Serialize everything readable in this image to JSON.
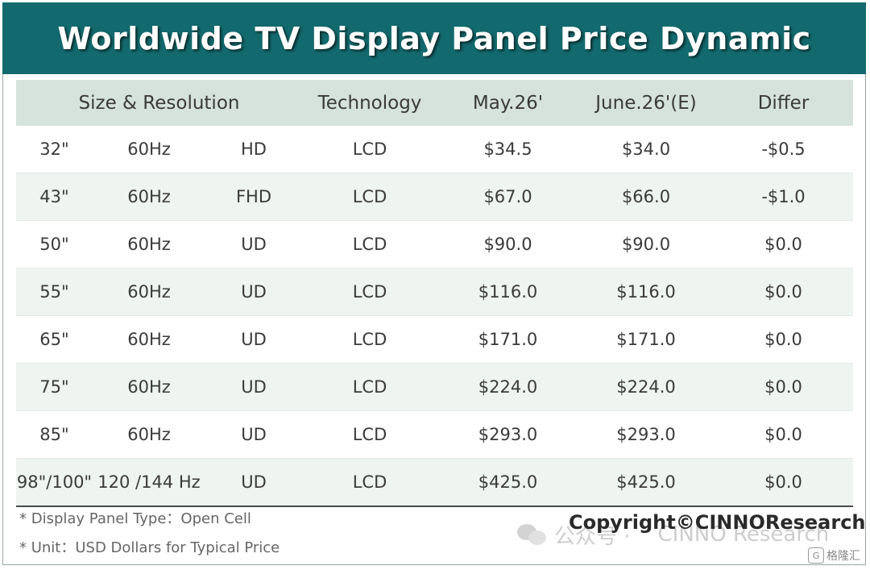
{
  "title": "Worldwide TV Display Panel Price Dynamic",
  "chart_data": {
    "type": "table",
    "columns": [
      "Size & Resolution",
      "Technology",
      "May.26'",
      "June.26'(E)",
      "Differ"
    ],
    "rows": [
      {
        "size": "32\"",
        "hz": "60Hz",
        "res": "HD",
        "tech": "LCD",
        "may": "$34.5",
        "june": "$34.0",
        "differ": "-$0.5"
      },
      {
        "size": "43\"",
        "hz": "60Hz",
        "res": "FHD",
        "tech": "LCD",
        "may": "$67.0",
        "june": "$66.0",
        "differ": "-$1.0"
      },
      {
        "size": "50\"",
        "hz": "60Hz",
        "res": "UD",
        "tech": "LCD",
        "may": "$90.0",
        "june": "$90.0",
        "differ": "$0.0"
      },
      {
        "size": "55\"",
        "hz": "60Hz",
        "res": "UD",
        "tech": "LCD",
        "may": "$116.0",
        "june": "$116.0",
        "differ": "$0.0"
      },
      {
        "size": "65\"",
        "hz": "60Hz",
        "res": "UD",
        "tech": "LCD",
        "may": "$171.0",
        "june": "$171.0",
        "differ": "$0.0"
      },
      {
        "size": "75\"",
        "hz": "60Hz",
        "res": "UD",
        "tech": "LCD",
        "may": "$224.0",
        "june": "$224.0",
        "differ": "$0.0"
      },
      {
        "size": "85\"",
        "hz": "60Hz",
        "res": "UD",
        "tech": "LCD",
        "may": "$293.0",
        "june": "$293.0",
        "differ": "$0.0"
      },
      {
        "size": "98\"/100\"",
        "hz": "120 /144 Hz",
        "res": "UD",
        "tech": "LCD",
        "may": "$425.0",
        "june": "$425.0",
        "differ": "$0.0"
      }
    ]
  },
  "notes": [
    "* Display Panel Type：Open Cell",
    "* Unit：USD Dollars for Typical Price"
  ],
  "copyright": "Copyright©CINNOResearch",
  "watermark": {
    "cn": "公众号 ·",
    "en": "CINNO Research",
    "icon": "wechat-icon"
  },
  "corner_logo": {
    "glyph": "G",
    "text": "格隆汇"
  },
  "colors": {
    "title_bg": "#136a6e",
    "header_bg": "#d6e3dc",
    "alt_row_bg": "#eef4f0"
  }
}
